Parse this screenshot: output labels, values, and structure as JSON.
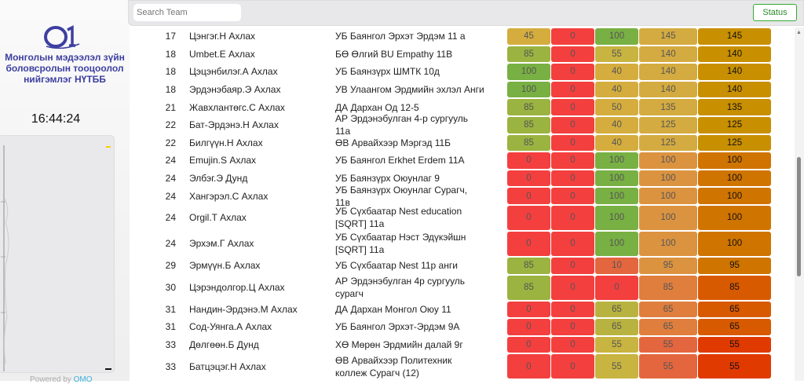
{
  "sidebar": {
    "logo_text": "01",
    "org_name": "Монголын мэдээлэл зүйн боловсролын тооцоолол нийгэмлэг НҮТББ",
    "clock": "16:44:24",
    "powered_label": "Powered by",
    "powered_link": "OMO"
  },
  "topbar": {
    "search_placeholder": "Search Team",
    "status_label": "Status"
  },
  "colors": {
    "red": "#f43f3f",
    "green": "#78b043",
    "accent": "#2a8a2a",
    "brand": "#3d3fa0"
  },
  "rows": [
    {
      "rank": "17",
      "name": "Цэнгэг.Н Ахлах",
      "school": "УБ Баянгол Эрхэт Эрдэм 11 а",
      "scores": [
        45,
        0,
        100,
        145
      ],
      "total": 145
    },
    {
      "rank": "18",
      "name": "Umbet.E Ахлах",
      "school": "БӨ Өлгий BU Empathy 11B",
      "scores": [
        85,
        0,
        55,
        140
      ],
      "total": 140
    },
    {
      "rank": "18",
      "name": "Цэцэнбилэг.А Ахлах",
      "school": "УБ Баянзүрх ШМТК 10д",
      "scores": [
        100,
        0,
        40,
        140
      ],
      "total": 140
    },
    {
      "rank": "18",
      "name": "Эрдэнэбаяр.Э Ахлах",
      "school": "УВ Улаангом Эрдмийн эхлэл Анги",
      "scores": [
        100,
        0,
        40,
        140
      ],
      "total": 140
    },
    {
      "rank": "21",
      "name": "Жавхлантөгс.С Ахлах",
      "school": "ДА Дархан Од 12-5",
      "scores": [
        85,
        0,
        50,
        135
      ],
      "total": 135
    },
    {
      "rank": "22",
      "name": "Бат-Эрдэнэ.Н Ахлах",
      "school": "АР Эрдэнэбулган 4-р сургууль 11а",
      "scores": [
        85,
        0,
        40,
        125
      ],
      "total": 125
    },
    {
      "rank": "22",
      "name": "Билгүүн.Н Ахлах",
      "school": "ӨВ Арвайхээр Мэргэд 11Б",
      "scores": [
        85,
        0,
        40,
        125
      ],
      "total": 125
    },
    {
      "rank": "24",
      "name": "Emujin.S Ахлах",
      "school": "УБ Баянгол Erkhet Erdem 11A",
      "scores": [
        0,
        0,
        100,
        100
      ],
      "total": 100
    },
    {
      "rank": "24",
      "name": "Элбэг.Э Дунд",
      "school": "УБ Баянзүрх Оюунлаг 9",
      "scores": [
        0,
        0,
        100,
        100
      ],
      "total": 100
    },
    {
      "rank": "24",
      "name": "Хангэрэл.С Ахлах",
      "school": "УБ Баянзүрх Оюунлаг Сурагч, 11в",
      "scores": [
        0,
        0,
        100,
        100
      ],
      "total": 100
    },
    {
      "rank": "24",
      "name": "Orgil.T Ахлах",
      "school": "УБ Сүхбаатар Nest education [SQRT] 11а",
      "scores": [
        0,
        0,
        100,
        100
      ],
      "total": 100,
      "tall": true
    },
    {
      "rank": "24",
      "name": "Эрхэм.Г Ахлах",
      "school": "УБ Сүхбаатар Нэст Эдүкэйшн [SQRT] 11а",
      "scores": [
        0,
        0,
        100,
        100
      ],
      "total": 100,
      "tall": true
    },
    {
      "rank": "29",
      "name": "Эрмүүн.Б Ахлах",
      "school": "УБ Сүхбаатар Nest 11р анги",
      "scores": [
        85,
        0,
        10,
        95
      ],
      "total": 95
    },
    {
      "rank": "30",
      "name": "Цэрэндолгор.Ц Ахлах",
      "school": "АР Эрдэнэбулган 4р сургууль сурагч",
      "scores": [
        85,
        0,
        0,
        85
      ],
      "total": 85,
      "tall": true
    },
    {
      "rank": "31",
      "name": "Нандин-Эрдэнэ.М Ахлах",
      "school": "ДА Дархан Монгол Оюу 11",
      "scores": [
        0,
        0,
        65,
        65
      ],
      "total": 65
    },
    {
      "rank": "31",
      "name": "Сод-Уянга.А Ахлах",
      "school": "УБ Баянгол Эрхэт-Эрдэм 9А",
      "scores": [
        0,
        0,
        65,
        65
      ],
      "total": 65
    },
    {
      "rank": "33",
      "name": "Дөлгөөн.Б Дунд",
      "school": "ХӨ Мөрөн Эрдмийн далай 9г",
      "scores": [
        0,
        0,
        55,
        55
      ],
      "total": 55
    },
    {
      "rank": "33",
      "name": "Батцэцэг.Н Ахлах",
      "school": "ӨВ Арвайхээр Политехник коллеж Сурагч (12)",
      "scores": [
        0,
        0,
        55,
        55
      ],
      "total": 55,
      "tall": true
    }
  ]
}
